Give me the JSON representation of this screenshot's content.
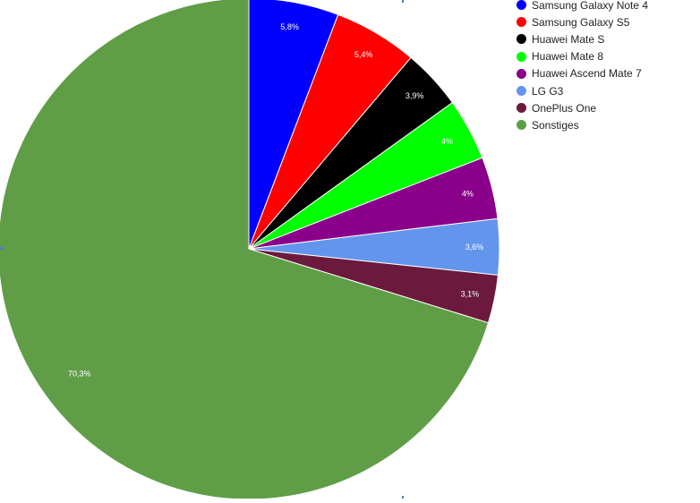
{
  "chart_data": {
    "type": "pie",
    "title": "",
    "legend_position": "top-right",
    "start_angle_deg": 0,
    "direction": "clockwise",
    "slices": [
      {
        "name": "Samsung Galaxy Note 4",
        "value": 5.8,
        "label": "5,8%",
        "color": "#0000ff"
      },
      {
        "name": "Samsung Galaxy S5",
        "value": 5.4,
        "label": "5,4%",
        "color": "#ff0000"
      },
      {
        "name": "Huawei Mate S",
        "value": 3.9,
        "label": "3,9%",
        "color": "#000000"
      },
      {
        "name": "Huawei Mate 8",
        "value": 4.0,
        "label": "4%",
        "color": "#00ff00"
      },
      {
        "name": "Huawei Ascend Mate 7",
        "value": 4.0,
        "label": "4%",
        "color": "#8b008b"
      },
      {
        "name": "LG G3",
        "value": 3.6,
        "label": "3,6%",
        "color": "#6495ed"
      },
      {
        "name": "OnePlus One",
        "value": 3.1,
        "label": "3,1%",
        "color": "#6b1a3e"
      },
      {
        "name": "Sonstiges",
        "value": 70.3,
        "label": "70,3%",
        "color": "#5f9e47"
      }
    ]
  }
}
